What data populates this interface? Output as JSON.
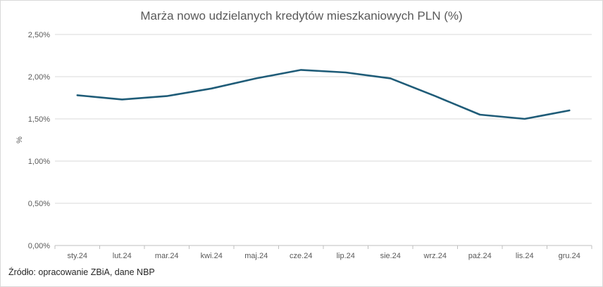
{
  "chart_data": {
    "type": "line",
    "title": "Marża nowo udzielanych kredytów mieszkaniowych PLN (%)",
    "ylabel": "%",
    "xlabel": "",
    "categories": [
      "sty.24",
      "lut.24",
      "mar.24",
      "kwi.24",
      "maj.24",
      "cze.24",
      "lip.24",
      "sie.24",
      "wrz.24",
      "paź.24",
      "lis.24",
      "gru.24"
    ],
    "series": [
      {
        "values": [
          1.78,
          1.73,
          1.77,
          1.86,
          1.98,
          2.08,
          2.05,
          1.98,
          1.77,
          1.55,
          1.5,
          1.6
        ],
        "color": "#1f5c78"
      }
    ],
    "ylim": [
      0,
      2.5
    ],
    "yticks": [
      0,
      0.5,
      1.0,
      1.5,
      2.0,
      2.5
    ],
    "ytick_labels": [
      "0,00%",
      "0,50%",
      "1,00%",
      "1,50%",
      "2,00%",
      "2,50%"
    ],
    "grid": true,
    "legend": "none"
  },
  "source": "Źródło: opracowanie ZBiA, dane NBP"
}
